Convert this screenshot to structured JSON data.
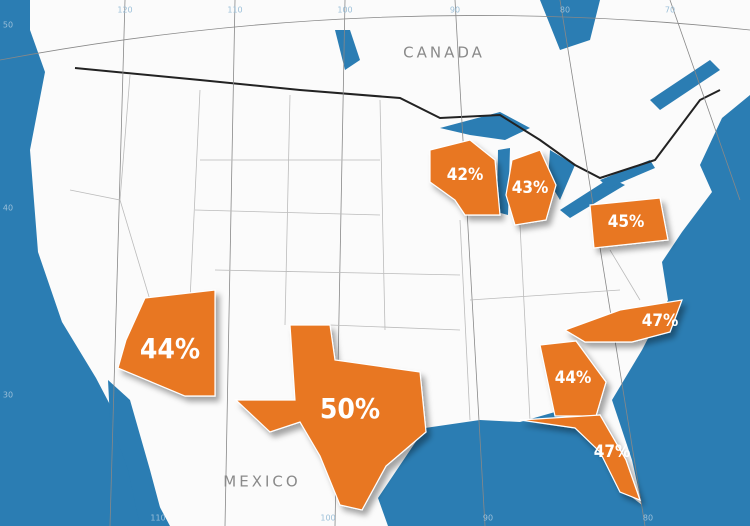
{
  "map": {
    "countries": [
      "CANADA",
      "MEXICO"
    ],
    "highlighted": [
      "42%",
      "43%",
      "45%",
      "44%",
      "50%",
      "47%",
      "44%",
      "47%"
    ],
    "grid_labels": {
      "top": [
        "120",
        "110",
        "100",
        "90",
        "80",
        "70"
      ],
      "left": [
        "50",
        "40",
        "30"
      ],
      "bottom": [
        "110",
        "100",
        "90",
        "80"
      ]
    }
  }
}
